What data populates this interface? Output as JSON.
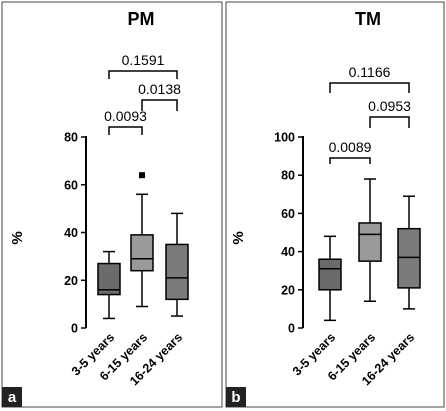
{
  "chart_data": [
    {
      "panel_letter": "a",
      "type": "box",
      "title": "PM",
      "ylabel": "%",
      "ylim": [
        0,
        80
      ],
      "yticks": [
        0,
        20,
        40,
        60,
        80
      ],
      "categories": [
        "3-5 years",
        "6-15 years",
        "16-24 years"
      ],
      "boxes": [
        {
          "min": 4,
          "q1": 14,
          "median": 16,
          "q3": 27,
          "max": 32,
          "outliers": []
        },
        {
          "min": 9,
          "q1": 24,
          "median": 29,
          "q3": 39,
          "max": 56,
          "outliers": [
            64
          ]
        },
        {
          "min": 5,
          "q1": 12,
          "median": 21,
          "q3": 35,
          "max": 48,
          "outliers": []
        }
      ],
      "comparisons": [
        {
          "from": 0,
          "to": 1,
          "p": "0.0093",
          "level": 0
        },
        {
          "from": 1,
          "to": 2,
          "p": "0.0138",
          "level": 1
        },
        {
          "from": 0,
          "to": 2,
          "p": "0.1591",
          "level": 2
        }
      ]
    },
    {
      "panel_letter": "b",
      "type": "box",
      "title": "TM",
      "ylabel": "%",
      "ylim": [
        0,
        100
      ],
      "yticks": [
        0,
        20,
        40,
        60,
        80,
        100
      ],
      "categories": [
        "3-5 years",
        "6-15 years",
        "16-24 years"
      ],
      "boxes": [
        {
          "min": 4,
          "q1": 20,
          "median": 31,
          "q3": 36,
          "max": 48,
          "outliers": []
        },
        {
          "min": 14,
          "q1": 35,
          "median": 49,
          "q3": 55,
          "max": 78,
          "outliers": []
        },
        {
          "min": 10,
          "q1": 21,
          "median": 37,
          "q3": 52,
          "max": 69,
          "outliers": []
        }
      ],
      "comparisons": [
        {
          "from": 0,
          "to": 1,
          "p": "0.0089",
          "level": 0
        },
        {
          "from": 1,
          "to": 2,
          "p": "0.0953",
          "level": 1
        },
        {
          "from": 0,
          "to": 2,
          "p": "0.1166",
          "level": 2
        }
      ]
    }
  ],
  "colors": {
    "box_fills": [
      "#6b6b6b",
      "#9a9a9a",
      "#7b7b7b"
    ],
    "line": "#000000",
    "frame": "#444444",
    "letter_bg": "#222222"
  }
}
